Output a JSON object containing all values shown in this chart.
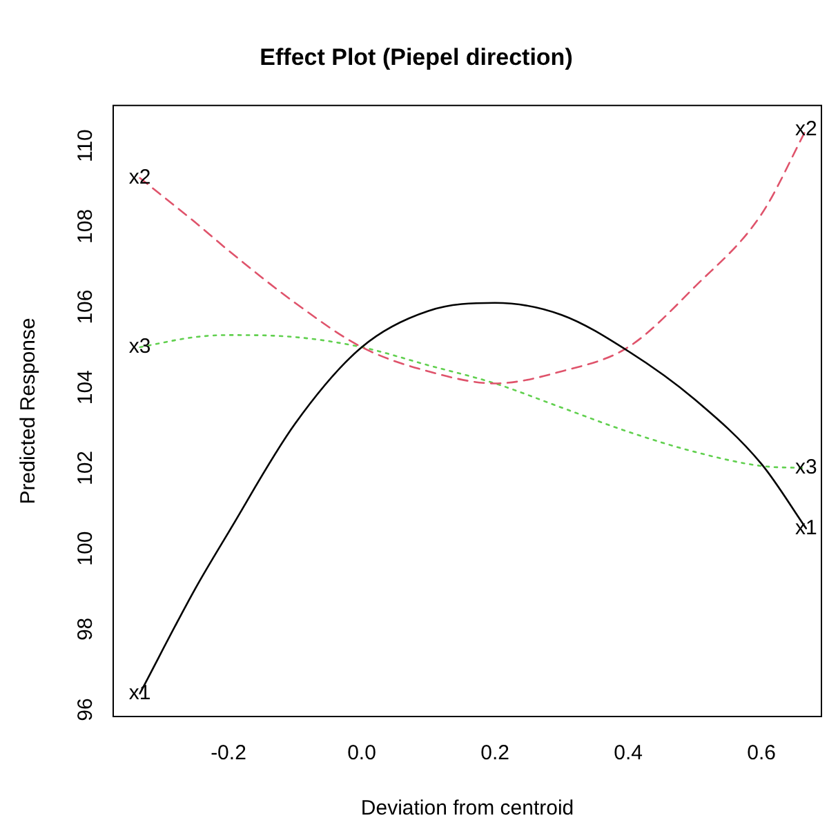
{
  "chart_data": {
    "type": "line",
    "title": "Effect Plot (Piepel direction)",
    "xlabel": "Deviation from centroid",
    "ylabel": "Predicted Response",
    "x": [
      -0.333,
      -0.25,
      -0.2,
      -0.1,
      0,
      0.1,
      0.2,
      0.3,
      0.4,
      0.5,
      0.6,
      0.667
    ],
    "series": [
      {
        "name": "x1",
        "color": "#000000",
        "line_style": "solid",
        "values": [
          96.4,
          99.0,
          100.4,
          103.1,
          105.0,
          105.9,
          106.1,
          105.8,
          104.9,
          103.7,
          102.1,
          100.5
        ]
      },
      {
        "name": "x2",
        "color": "#df536b",
        "line_style": "dashed",
        "values": [
          109.2,
          108.1,
          107.4,
          106.1,
          105.0,
          104.4,
          104.1,
          104.4,
          105.0,
          106.5,
          108.3,
          110.4
        ]
      },
      {
        "name": "x3",
        "color": "#61d04f",
        "line_style": "dotted",
        "values": [
          105.0,
          105.25,
          105.3,
          105.25,
          105.0,
          104.55,
          104.1,
          103.5,
          102.9,
          102.4,
          102.05,
          102.0
        ]
      }
    ],
    "xlim": [
      -0.373,
      0.69
    ],
    "xticks": [
      {
        "value": -0.2,
        "label": "-0.2"
      },
      {
        "value": 0,
        "label": "0.0"
      },
      {
        "value": 0.2,
        "label": "0.2"
      },
      {
        "value": 0.4,
        "label": "0.4"
      },
      {
        "value": 0.6,
        "label": "0.6"
      }
    ],
    "ylim": [
      95.83,
      111.0
    ],
    "yticks": [
      96,
      98,
      100,
      102,
      104,
      106,
      108,
      110
    ],
    "grid": false,
    "legend": false,
    "marker": "none"
  }
}
